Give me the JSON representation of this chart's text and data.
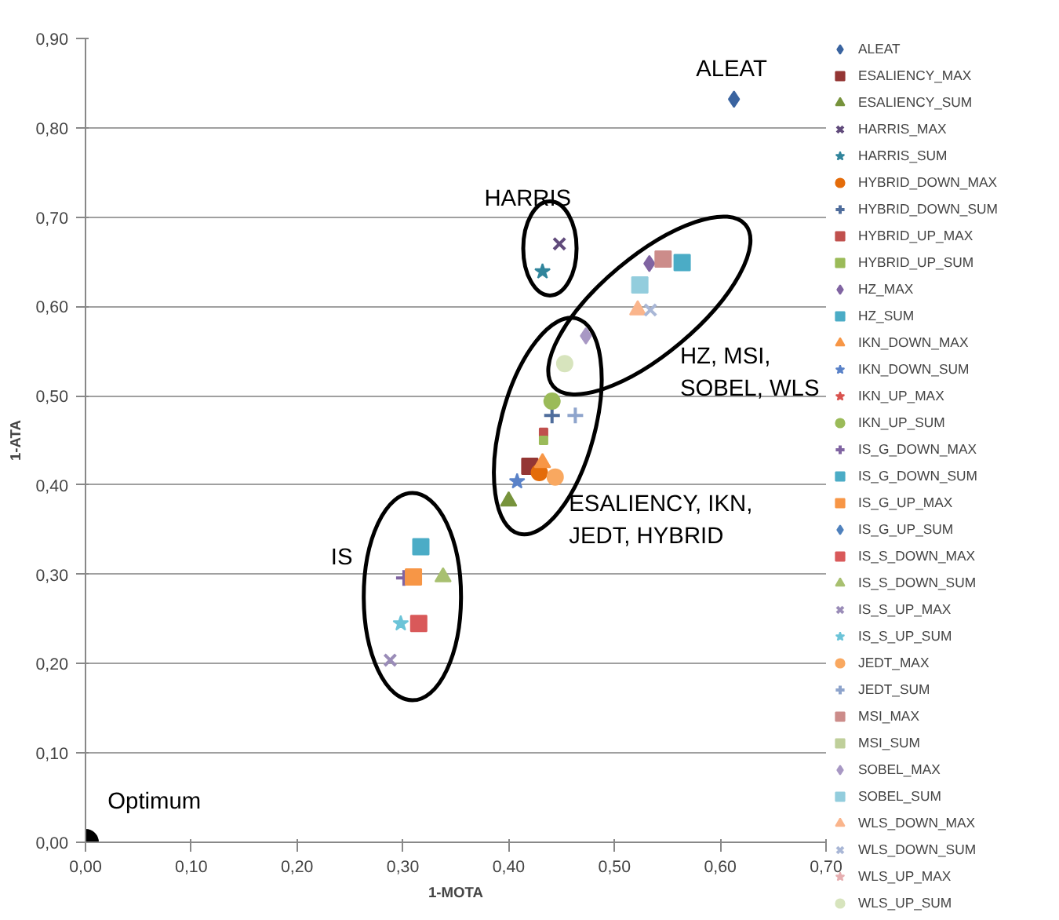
{
  "chart_data": {
    "type": "scatter",
    "xlabel": "1-MOTA",
    "ylabel": "1-ATA",
    "xlim": [
      0,
      0.7
    ],
    "ylim": [
      0,
      0.9
    ],
    "xticks": [
      {
        "value": 0,
        "label": "0,00"
      },
      {
        "value": 0.1,
        "label": "0,10"
      },
      {
        "value": 0.2,
        "label": "0,20"
      },
      {
        "value": 0.3,
        "label": "0,30"
      },
      {
        "value": 0.4,
        "label": "0,40"
      },
      {
        "value": 0.5,
        "label": "0,50"
      },
      {
        "value": 0.6,
        "label": "0,60"
      },
      {
        "value": 0.7,
        "label": "0,70"
      }
    ],
    "yticks": [
      {
        "value": 0,
        "label": "0,00"
      },
      {
        "value": 0.1,
        "label": "0,10"
      },
      {
        "value": 0.2,
        "label": "0,20"
      },
      {
        "value": 0.3,
        "label": "0,30"
      },
      {
        "value": 0.4,
        "label": "0,40"
      },
      {
        "value": 0.5,
        "label": "0,50"
      },
      {
        "value": 0.6,
        "label": "0,60"
      },
      {
        "value": 0.7,
        "label": "0,70"
      },
      {
        "value": 0.8,
        "label": "0,80"
      },
      {
        "value": 0.9,
        "label": "0,90"
      }
    ],
    "grid": "y",
    "legend": "right",
    "series": [
      {
        "name": "ALEAT",
        "color": "#3a64a0",
        "marker": "diamond",
        "x": [
          0.613
        ],
        "values": [
          0.832
        ]
      },
      {
        "name": "ESALIENCY_MAX",
        "color": "#943634",
        "marker": "square",
        "x": [
          0.42
        ],
        "values": [
          0.421
        ]
      },
      {
        "name": "ESALIENCY_SUM",
        "color": "#77933c",
        "marker": "triangle",
        "x": [
          0.4
        ],
        "values": [
          0.382
        ]
      },
      {
        "name": "HARRIS_MAX",
        "color": "#604a7b",
        "marker": "x",
        "x": [
          0.448
        ],
        "values": [
          0.67
        ]
      },
      {
        "name": "HARRIS_SUM",
        "color": "#31859c",
        "marker": "star",
        "x": [
          0.432
        ],
        "values": [
          0.639
        ]
      },
      {
        "name": "HYBRID_DOWN_MAX",
        "color": "#e46c0a",
        "marker": "circle",
        "x": [
          0.429
        ],
        "values": [
          0.414
        ]
      },
      {
        "name": "HYBRID_DOWN_SUM",
        "color": "#4f6d9c",
        "marker": "cross",
        "x": [
          0.441
        ],
        "values": [
          0.478
        ]
      },
      {
        "name": "HYBRID_UP_MAX",
        "color": "#c0504d",
        "marker": "square",
        "x": [
          0.433
        ],
        "values": [
          0.459
        ]
      },
      {
        "name": "HYBRID_UP_SUM",
        "color": "#9bbb59",
        "marker": "square",
        "x": [
          0.433
        ],
        "values": [
          0.45
        ]
      },
      {
        "name": "HZ_MAX",
        "color": "#8064a2",
        "marker": "diamond",
        "x": [
          0.533
        ],
        "values": [
          0.648
        ]
      },
      {
        "name": "HZ_SUM",
        "color": "#4bacc6",
        "marker": "square",
        "x": [
          0.564
        ],
        "values": [
          0.649
        ]
      },
      {
        "name": "IKN_DOWN_MAX",
        "color": "#f79646",
        "marker": "triangle",
        "x": [
          0.432
        ],
        "values": [
          0.425
        ]
      },
      {
        "name": "IKN_DOWN_SUM",
        "color": "#5a82c8",
        "marker": "star",
        "x": [
          0.408
        ],
        "values": [
          0.404
        ]
      },
      {
        "name": "IKN_UP_MAX",
        "color": "#d9534f",
        "marker": "star",
        "x": [
          null
        ],
        "values": [
          null
        ]
      },
      {
        "name": "IKN_UP_SUM",
        "color": "#9bbb59",
        "marker": "circle",
        "x": [
          0.441
        ],
        "values": [
          0.494
        ]
      },
      {
        "name": "IS_G_DOWN_MAX",
        "color": "#8064a2",
        "marker": "cross",
        "x": [
          0.301
        ],
        "values": [
          0.296
        ]
      },
      {
        "name": "IS_G_DOWN_SUM",
        "color": "#4bacc6",
        "marker": "square",
        "x": [
          0.317
        ],
        "values": [
          0.331
        ]
      },
      {
        "name": "IS_G_UP_MAX",
        "color": "#f79646",
        "marker": "square",
        "x": [
          0.31
        ],
        "values": [
          0.297
        ]
      },
      {
        "name": "IS_G_UP_SUM",
        "color": "#4f81bd",
        "marker": "diamond",
        "x": [
          null
        ],
        "values": [
          null
        ]
      },
      {
        "name": "IS_S_DOWN_MAX",
        "color": "#d9595a",
        "marker": "square",
        "x": [
          0.315
        ],
        "values": [
          0.245
        ]
      },
      {
        "name": "IS_S_DOWN_SUM",
        "color": "#a8c070",
        "marker": "triangle",
        "x": [
          0.338
        ],
        "values": [
          0.297
        ]
      },
      {
        "name": "IS_S_UP_MAX",
        "color": "#9a8cb8",
        "marker": "x",
        "x": [
          0.288
        ],
        "values": [
          0.204
        ]
      },
      {
        "name": "IS_S_UP_SUM",
        "color": "#6cc4d8",
        "marker": "star",
        "x": [
          0.298
        ],
        "values": [
          0.245
        ]
      },
      {
        "name": "JEDT_MAX",
        "color": "#f9a860",
        "marker": "circle",
        "x": [
          0.444
        ],
        "values": [
          0.409
        ]
      },
      {
        "name": "JEDT_SUM",
        "color": "#8ea4cc",
        "marker": "cross",
        "x": [
          0.463
        ],
        "values": [
          0.478
        ]
      },
      {
        "name": "MSI_MAX",
        "color": "#cc8c8a",
        "marker": "square",
        "x": [
          0.546
        ],
        "values": [
          0.653
        ]
      },
      {
        "name": "MSI_SUM",
        "color": "#bfcf9a",
        "marker": "square",
        "x": [
          null
        ],
        "values": [
          null
        ]
      },
      {
        "name": "SOBEL_MAX",
        "color": "#a898c4",
        "marker": "diamond",
        "x": [
          0.473
        ],
        "values": [
          0.567
        ]
      },
      {
        "name": "SOBEL_SUM",
        "color": "#93cddd",
        "marker": "square",
        "x": [
          0.524
        ],
        "values": [
          0.624
        ]
      },
      {
        "name": "WLS_DOWN_MAX",
        "color": "#fab58c",
        "marker": "triangle",
        "x": [
          0.522
        ],
        "values": [
          0.596
        ]
      },
      {
        "name": "WLS_DOWN_SUM",
        "color": "#a9b7d6",
        "marker": "x",
        "x": [
          0.534
        ],
        "values": [
          0.596
        ]
      },
      {
        "name": "WLS_UP_MAX",
        "color": "#e6aeb0",
        "marker": "star",
        "x": [
          null
        ],
        "values": [
          null
        ]
      },
      {
        "name": "WLS_UP_SUM",
        "color": "#d7e4bd",
        "marker": "circle",
        "x": [
          0.453
        ],
        "values": [
          0.536
        ]
      },
      {
        "color": "#000000",
        "marker": "circle",
        "x": [
          0
        ],
        "values": [
          0
        ]
      }
    ],
    "annotations": [
      "ALEAT",
      "HARRIS",
      "HZ, MSI,\nSOBEL, WLS",
      "ESALIENCY, IKN,\nJEDT, HYBRID",
      "IS",
      "Optimum"
    ]
  }
}
